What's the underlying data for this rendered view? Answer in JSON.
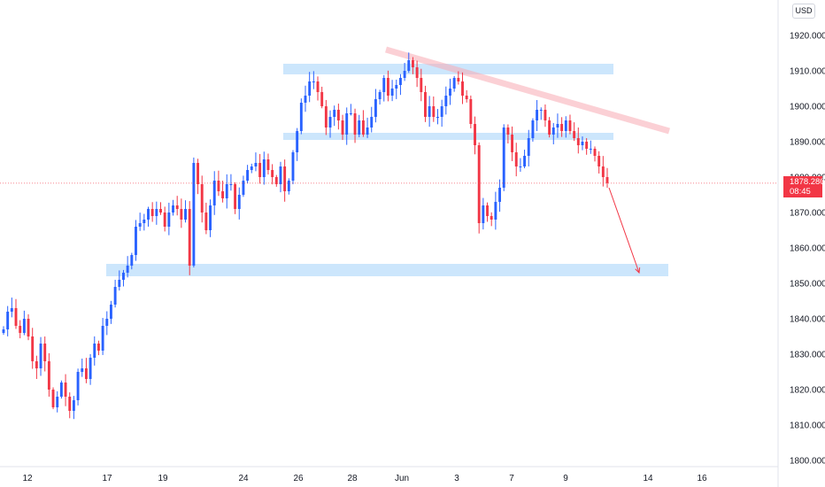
{
  "currency_label": "USD",
  "current_price": "1878.280",
  "countdown": "08:45",
  "colors": {
    "up": "#2962ff",
    "down": "#f23645",
    "zone": "#bbdefb",
    "trendline": "#f7a9b3",
    "arrow": "#f23645"
  },
  "chart_data": {
    "type": "candlestick",
    "timeframe_note": "2-hour candles, May 11 to June 10",
    "y_ticks": [
      "1800.000",
      "1810.000",
      "1820.000",
      "1830.000",
      "1840.000",
      "1850.000",
      "1860.000",
      "1870.000",
      "1880.000",
      "1890.000",
      "1900.000",
      "1910.000",
      "1920.000"
    ],
    "ylim": [
      1797,
      1930
    ],
    "x_ticks": [
      "12",
      "17",
      "19",
      "24",
      "26",
      "28",
      "Jun",
      "3",
      "7",
      "9",
      "14",
      "16"
    ],
    "series": [
      {
        "c": [
          1837,
          1842,
          1843,
          1838,
          1836,
          1840,
          1835,
          1828,
          1826,
          1833,
          1828,
          1820,
          1815,
          1818,
          1822,
          1818,
          1814,
          1817,
          1825,
          1826,
          1823,
          1829,
          1833,
          1831,
          1838,
          1840,
          1844,
          1849,
          1851,
          1853,
          1855,
          1858,
          1866,
          1867,
          1868,
          1871,
          1869,
          1871,
          1870,
          1866,
          1870,
          1872,
          1871,
          1868,
          1871,
          1855,
          1884,
          1878,
          1870,
          1865,
          1872,
          1879,
          1876,
          1874,
          1878,
          1878,
          1871,
          1875,
          1879,
          1882,
          1883,
          1884,
          1880,
          1885,
          1882,
          1880,
          1878,
          1883,
          1876,
          1879,
          1887,
          1893,
          1901,
          1903,
          1907,
          1907,
          1904,
          1900,
          1894,
          1897,
          1899,
          1896,
          1892,
          1898,
          1898,
          1892,
          1896,
          1892,
          1894,
          1897,
          1902,
          1904,
          1908,
          1903,
          1905,
          1906,
          1908,
          1910,
          1913,
          1911,
          1908,
          1904,
          1897,
          1900,
          1897,
          1897,
          1900,
          1903,
          1905,
          1908,
          1907,
          1903,
          1902,
          1895,
          1889,
          1867,
          1872,
          1869,
          1868,
          1873,
          1877,
          1894,
          1892,
          1887,
          1883,
          1883,
          1886,
          1891,
          1896,
          1899,
          1899,
          1896,
          1892,
          1894,
          1895,
          1893,
          1896,
          1893,
          1891,
          1889,
          1890,
          1888,
          1888,
          1886,
          1883,
          1880,
          1878.3
        ]
      }
    ],
    "zones": [
      {
        "from": 1909,
        "to": 1912
      },
      {
        "from": 1890.5,
        "to": 1892.5
      },
      {
        "from": 1852,
        "to": 1855.5
      }
    ],
    "trendline": {
      "from": [
        0,
        1916
      ],
      "to": [
        1,
        1893
      ]
    },
    "projection": {
      "from": 1877,
      "to": 1853
    },
    "grid": false,
    "current_price_line": 1878.28
  }
}
